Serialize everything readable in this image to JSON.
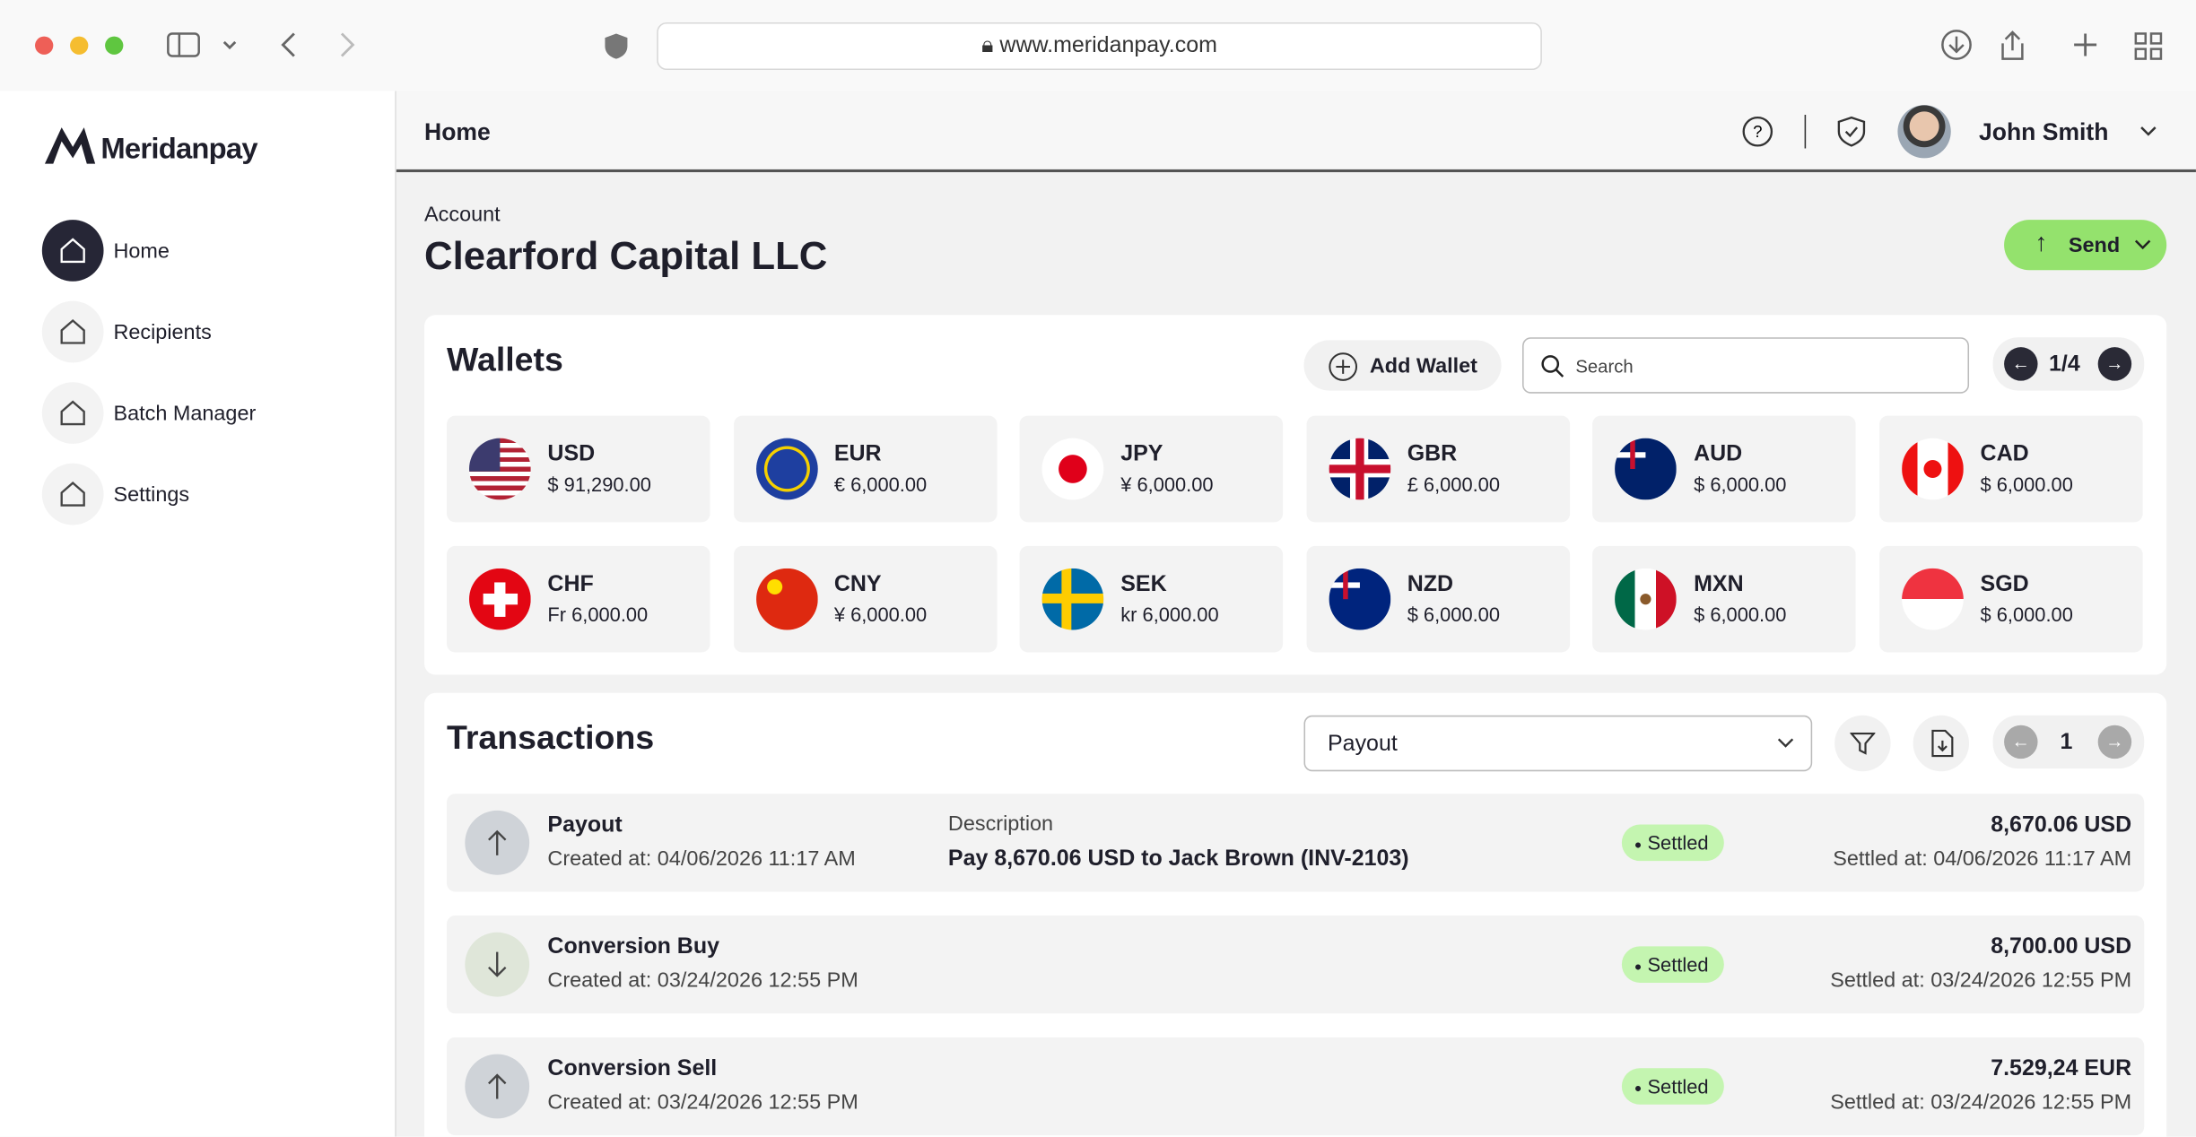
{
  "browser": {
    "url": "www.meridanpay.com"
  },
  "sidebar": {
    "brand": "Meridanpay",
    "nav": [
      "Home",
      "Recipients",
      "Batch Manager",
      "Settings"
    ]
  },
  "header": {
    "title": "Home",
    "user": "John Smith"
  },
  "account": {
    "label": "Account",
    "name": "Clearford Capital LLC",
    "send": "Send"
  },
  "wallets": {
    "title": "Wallets",
    "add": "Add Wallet",
    "search": "Search",
    "page": "1/4",
    "items": [
      {
        "code": "USD",
        "amount": "$ 91,290.00"
      },
      {
        "code": "EUR",
        "amount": "€ 6,000.00"
      },
      {
        "code": "JPY",
        "amount": "¥ 6,000.00"
      },
      {
        "code": "GBR",
        "amount": "£ 6,000.00"
      },
      {
        "code": "AUD",
        "amount": "$ 6,000.00"
      },
      {
        "code": "CAD",
        "amount": "$ 6,000.00"
      },
      {
        "code": "CHF",
        "amount": "Fr 6,000.00"
      },
      {
        "code": "CNY",
        "amount": "¥ 6,000.00"
      },
      {
        "code": "SEK",
        "amount": "kr 6,000.00"
      },
      {
        "code": "NZD",
        "amount": "$ 6,000.00"
      },
      {
        "code": "MXN",
        "amount": "$ 6,000.00"
      },
      {
        "code": "SGD",
        "amount": "$ 6,000.00"
      }
    ]
  },
  "transactions": {
    "title": "Transactions",
    "filter": "Payout",
    "page": "1",
    "rows": [
      {
        "type": "Payout",
        "created": "Created at: 04/06/2026 11:17 AM",
        "description_label": "Description",
        "description": "Pay 8,670.06 USD to Jack Brown (INV-2103)",
        "status": "Settled",
        "amount": "8,670.06 USD",
        "settled": "Settled at: 04/06/2026 11:17 AM"
      },
      {
        "type": "Conversion Buy",
        "created": "Created at: 03/24/2026 12:55 PM",
        "status": "Settled",
        "amount": "8,700.00 USD",
        "settled": "Settled at: 03/24/2026 12:55 PM"
      },
      {
        "type": "Conversion Sell",
        "created": "Created at: 03/24/2026 12:55 PM",
        "status": "Settled",
        "amount": "7.529,24 EUR",
        "settled": "Settled at: 03/24/2026 12:55 PM"
      }
    ]
  }
}
